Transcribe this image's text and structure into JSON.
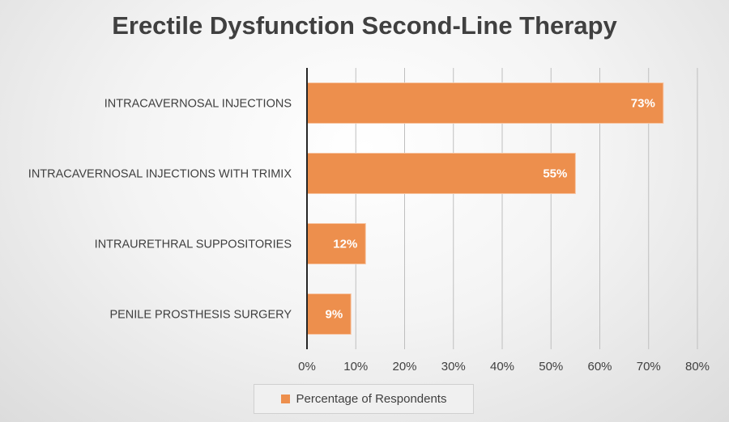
{
  "chart_data": {
    "type": "bar",
    "orientation": "horizontal",
    "title": "Erectile Dysfunction Second-Line Therapy",
    "categories": [
      "INTRACAVERNOSAL INJECTIONS",
      "INTRACAVERNOSAL INJECTIONS WITH TRIMIX",
      "INTRAURETHRAL SUPPOSITORIES",
      "PENILE PROSTHESIS SURGERY"
    ],
    "series": [
      {
        "name": "Percentage of Respondents",
        "values": [
          73,
          55,
          12,
          9
        ],
        "labels": [
          "73%",
          "55%",
          "12%",
          "9%"
        ],
        "color": "#ed8f4d"
      }
    ],
    "xlim": [
      0,
      80
    ],
    "xticks": [
      0,
      10,
      20,
      30,
      40,
      50,
      60,
      70,
      80
    ],
    "xtick_labels": [
      "0%",
      "10%",
      "20%",
      "30%",
      "40%",
      "50%",
      "60%",
      "70%",
      "80%"
    ],
    "grid": "vertical",
    "legend_position": "bottom"
  }
}
